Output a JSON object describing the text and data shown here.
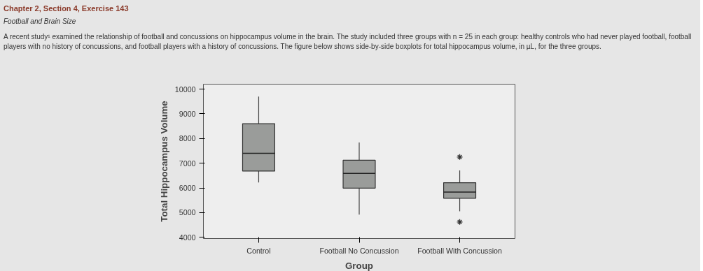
{
  "chart_data": {
    "type": "box",
    "title": "Chapter 2, Section 4, Exercise 143",
    "subtitle": "Football and Brain Size",
    "annotations": [
      "A recent study¹ examined the relationship of football and concussions on hippocampus volume in the brain. The study included three groups with n = 25 in each group: healthy controls who had never played football, football players with no history of concussions, and football players with a history of concussions. The figure below shows side-by-side boxplots for total hippocampus volume, in µL, for the three groups."
    ],
    "categories": [
      "Control",
      "Football No Concussion",
      "Football With Concussion"
    ],
    "boxes": [
      {
        "low": 6220,
        "q1": 6680,
        "median": 7400,
        "q3": 8600,
        "high": 9700
      },
      {
        "low": 4920,
        "q1": 5990,
        "median": 6590,
        "q3": 7120,
        "high": 7840
      },
      {
        "low": 5050,
        "q1": 5580,
        "median": 5830,
        "q3": 6210,
        "high": 6710,
        "outliers": [
          7250,
          4620
        ]
      }
    ],
    "color": "#9a9c9a",
    "xlabel": "Group",
    "ylabel": "Total Hippocampus Volume",
    "ylim": [
      3950,
      10200
    ],
    "yticks": [
      4000,
      5000,
      6000,
      7000,
      8000,
      9000,
      10000
    ]
  }
}
